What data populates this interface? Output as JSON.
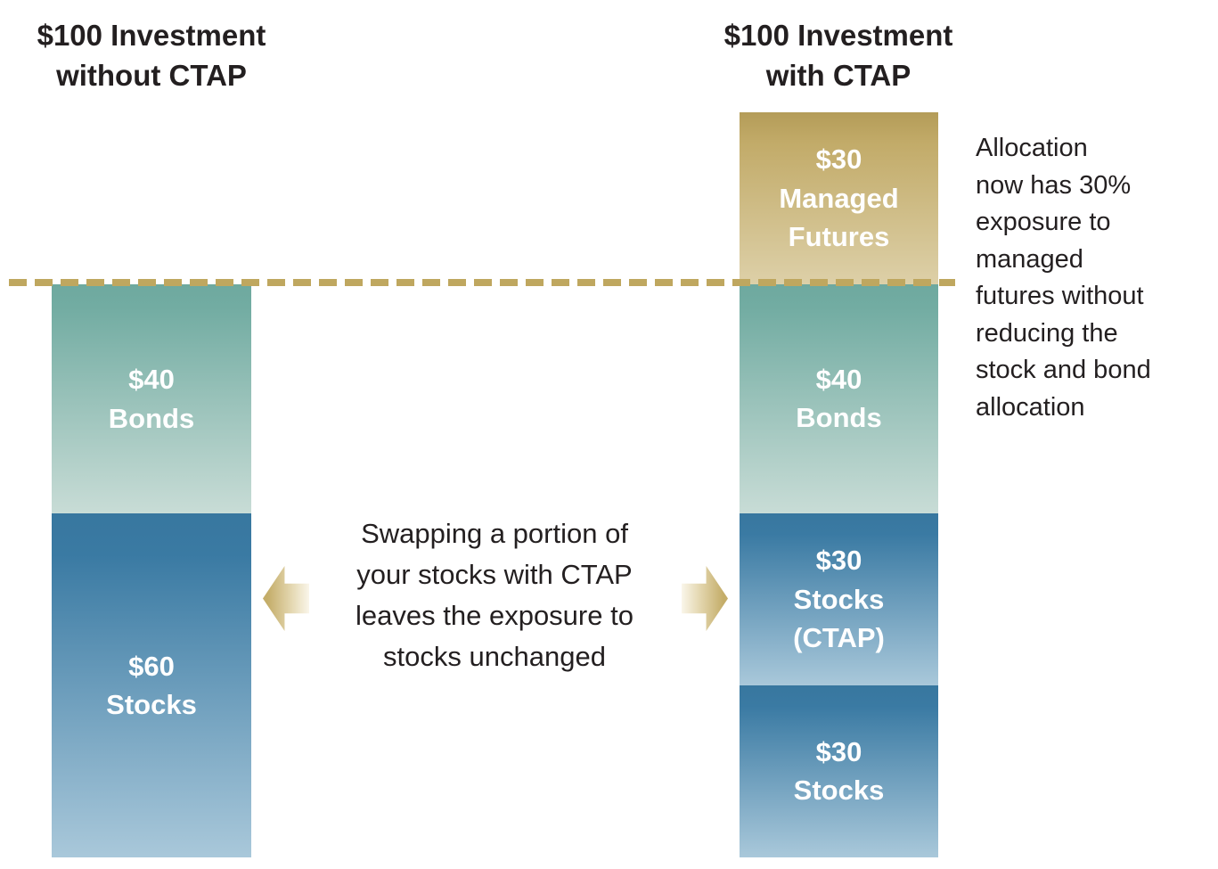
{
  "titles": {
    "left": "$100 Investment\nwithout CTAP",
    "right": "$100 Investment\nwith CTAP"
  },
  "chart_data": {
    "type": "bar",
    "subtype": "stacked_comparison",
    "unit": "$ (dollars of a $100 investment)",
    "baseline": {
      "value": 100,
      "note": "dashed gold line marks the $100 level; managed futures segment sits above it"
    },
    "bars": [
      {
        "name": "without_ctap",
        "title": "$100 Investment without CTAP",
        "total": 100,
        "segments": [
          {
            "category": "Bonds",
            "value": 40,
            "label": "$40\nBonds",
            "color_key": "teal"
          },
          {
            "category": "Stocks",
            "value": 60,
            "label": "$60\nStocks",
            "color_key": "blue"
          }
        ]
      },
      {
        "name": "with_ctap",
        "title": "$100 Investment with CTAP",
        "total": 130,
        "segments": [
          {
            "category": "Managed Futures",
            "value": 30,
            "label": "$30\nManaged\nFutures",
            "color_key": "gold",
            "above_baseline": true
          },
          {
            "category": "Bonds",
            "value": 40,
            "label": "$40\nBonds",
            "color_key": "teal"
          },
          {
            "category": "Stocks (CTAP)",
            "value": 30,
            "label": "$30\nStocks\n(CTAP)",
            "color_key": "blue"
          },
          {
            "category": "Stocks",
            "value": 30,
            "label": "$30\nStocks",
            "color_key": "blue"
          }
        ]
      }
    ],
    "legend": "none",
    "grid": false
  },
  "annotations": {
    "middle": "Swapping a portion of\nyour stocks with CTAP\nleaves the exposure to\nstocks unchanged",
    "right": "Allocation\nnow has 30%\nexposure to\nmanaged\nfutures without\nreducing the\nstock and bond\nallocation"
  },
  "icons": {
    "left_arrow": "arrow-pointing-left",
    "right_arrow": "arrow-pointing-right"
  },
  "colors": {
    "gold_top": "#b49c58",
    "gold_bottom": "#ddd0a8",
    "teal_top": "#72aca2",
    "teal_bottom": "#c8dcd6",
    "blue_top": "#3a7aa3",
    "blue_bottom": "#a9c8da",
    "dashed_line": "#bfa75f",
    "arrow_gold": "#c4ad69",
    "text": "#231f20",
    "bar_label_text": "#ffffff"
  }
}
